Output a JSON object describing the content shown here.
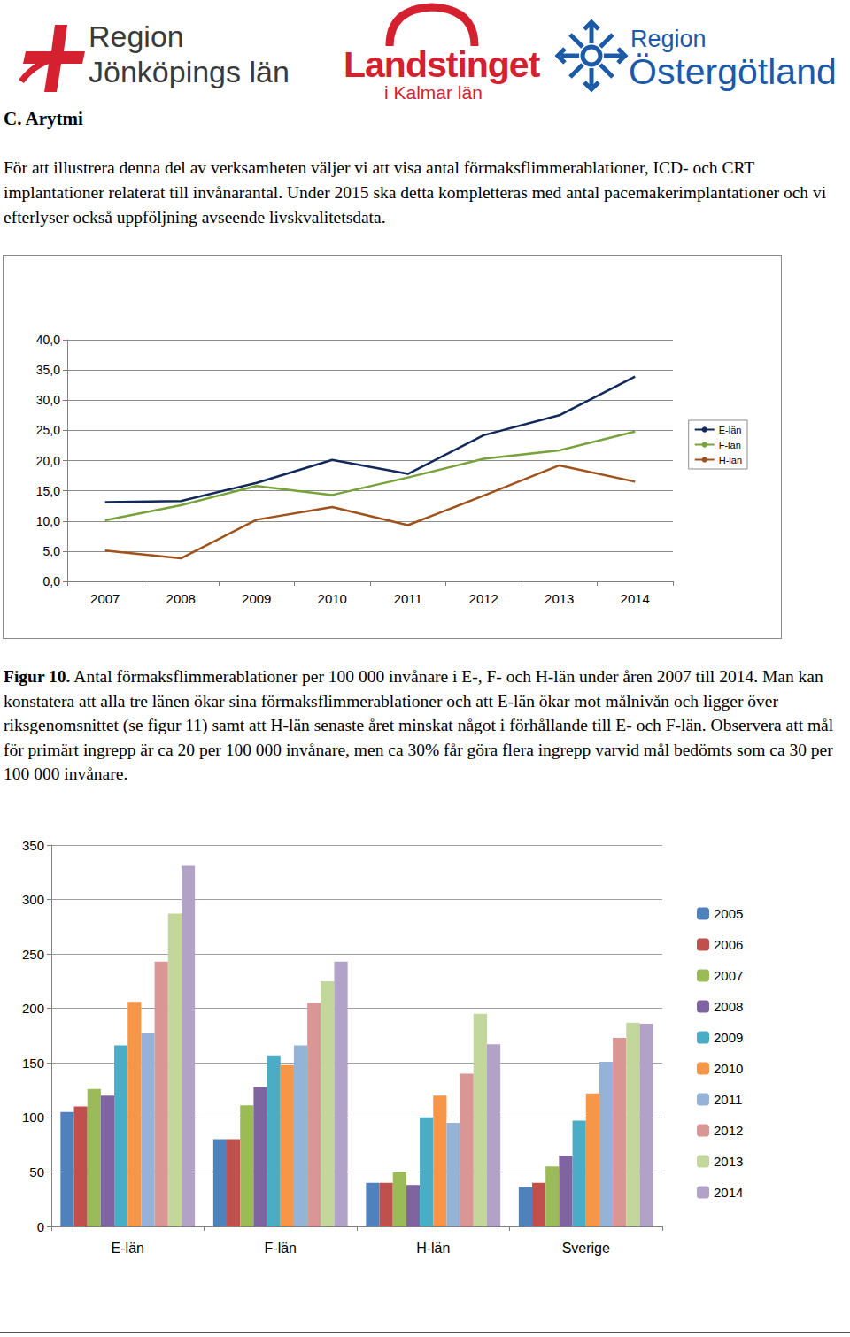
{
  "header": {
    "logos": [
      {
        "lines": [
          "Region",
          "Jönköpings län"
        ]
      },
      {
        "lines": [
          "Landstinget",
          "i Kalmar län"
        ]
      },
      {
        "lines": [
          "Region",
          "Östergötland"
        ]
      }
    ]
  },
  "section_title": "C. Arytmi",
  "intro": "För att illustrera denna del av verksamheten väljer vi att visa antal förmaksflimmerablationer, ICD- och CRT implantationer relaterat till invånarantal. Under 2015 ska detta kompletteras med antal pacemakerimplantationer och vi efterlyser också uppföljning avseende livskvalitetsdata.",
  "chart_data": [
    {
      "type": "line",
      "categories": [
        "2007",
        "2008",
        "2009",
        "2010",
        "2011",
        "2012",
        "2013",
        "2014"
      ],
      "series": [
        {
          "name": "E-län",
          "color": "#12295c",
          "values": [
            13.1,
            13.3,
            16.3,
            20.1,
            17.8,
            24.2,
            27.5,
            33.9
          ]
        },
        {
          "name": "F-län",
          "color": "#77a33a",
          "values": [
            10.1,
            12.6,
            15.8,
            14.3,
            17.2,
            20.3,
            21.7,
            24.8
          ]
        },
        {
          "name": "H-län",
          "color": "#a0521c",
          "values": [
            5.1,
            3.8,
            10.2,
            12.3,
            9.3,
            14.2,
            19.2,
            16.5
          ]
        }
      ],
      "ylim": [
        0,
        40
      ],
      "yticks": [
        {
          "value": 0,
          "label": "0,0"
        },
        {
          "value": 5,
          "label": "5,0"
        },
        {
          "value": 10,
          "label": "10,0"
        },
        {
          "value": 15,
          "label": "15,0"
        },
        {
          "value": 20,
          "label": "20,0"
        },
        {
          "value": 25,
          "label": "25,0"
        },
        {
          "value": 30,
          "label": "30,0"
        },
        {
          "value": 35,
          "label": "35,0"
        },
        {
          "value": 40,
          "label": "40,0"
        }
      ],
      "grid": true,
      "legend": "right",
      "marker": "none"
    },
    {
      "type": "bar",
      "categories": [
        "E-län",
        "F-län",
        "H-län",
        "Sverige"
      ],
      "series": [
        {
          "name": "2005",
          "color": "#4f81bd",
          "values": [
            105,
            80,
            40,
            36
          ]
        },
        {
          "name": "2006",
          "color": "#c0504d",
          "values": [
            110,
            80,
            40,
            40
          ]
        },
        {
          "name": "2007",
          "color": "#9bbb59",
          "values": [
            126,
            111,
            50,
            55
          ]
        },
        {
          "name": "2008",
          "color": "#8064a2",
          "values": [
            120,
            128,
            38,
            65
          ]
        },
        {
          "name": "2009",
          "color": "#4bacc6",
          "values": [
            166,
            157,
            100,
            97
          ]
        },
        {
          "name": "2010",
          "color": "#f79646",
          "values": [
            206,
            148,
            120,
            122
          ]
        },
        {
          "name": "2011",
          "color": "#95b3d7",
          "values": [
            177,
            166,
            95,
            151
          ]
        },
        {
          "name": "2012",
          "color": "#d99694",
          "values": [
            243,
            205,
            140,
            173
          ]
        },
        {
          "name": "2013",
          "color": "#c3d69b",
          "values": [
            287,
            225,
            195,
            187
          ]
        },
        {
          "name": "2014",
          "color": "#b3a2c7",
          "values": [
            331,
            243,
            167,
            186
          ]
        }
      ],
      "ylim": [
        0,
        350
      ],
      "yticks": [
        0,
        50,
        100,
        150,
        200,
        250,
        300,
        350
      ],
      "grid": true,
      "legend": "right"
    }
  ],
  "figure_caption": {
    "label": "Figur 10.",
    "text": "Antal förmaksflimmerablationer per 100 000 invånare i E-, F- och H-län under åren 2007 till 2014. Man kan konstatera att alla tre länen ökar sina förmaksflimmerablationer och att E-län ökar mot målnivån och ligger över riksgenomsnittet (se figur 11) samt att H-län senaste året minskat något i förhållande till E- och F-län. Observera att mål för primärt ingrepp är ca 20 per 100 000 invånare, men ca 30% får göra flera ingrepp varvid mål bedömts som ca 30 per 100 000 invånare."
  }
}
